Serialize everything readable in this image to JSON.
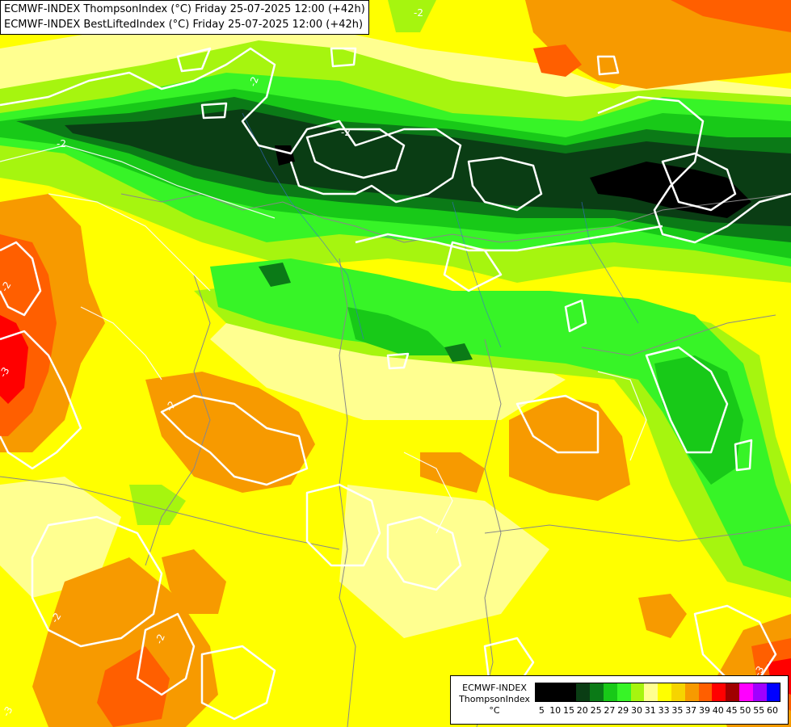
{
  "header": {
    "line1": "ECMWF-INDEX ThompsonIndex (°C) Friday 25-07-2025 12:00 (+42h)",
    "line2": "ECMWF-INDEX BestLiftedIndex (°C) Friday 25-07-2025 12:00 (+42h)"
  },
  "legend": {
    "title": "ECMWF-INDEX",
    "subtitle": "ThompsonIndex",
    "unit": "°C",
    "ticks": [
      "5",
      "10",
      "15",
      "20",
      "25",
      "27",
      "29",
      "30",
      "31",
      "33",
      "35",
      "37",
      "39",
      "40",
      "45",
      "50",
      "55",
      "60"
    ],
    "colors": [
      "#000000",
      "#000000",
      "#000000",
      "#0a3d14",
      "#0b7a17",
      "#18c918",
      "#37f427",
      "#a6f50f",
      "#ffff90",
      "#ffff00",
      "#f6d400",
      "#f79a00",
      "#ff5f00",
      "#ff0000",
      "#a00000",
      "#ff00ff",
      "#a000ff",
      "#0000ff"
    ]
  },
  "contour_labels": [
    "-2",
    "-2",
    "-2",
    "-2",
    "-2",
    "-2",
    "-3",
    "-2",
    "-3",
    "-2",
    "-3"
  ]
}
